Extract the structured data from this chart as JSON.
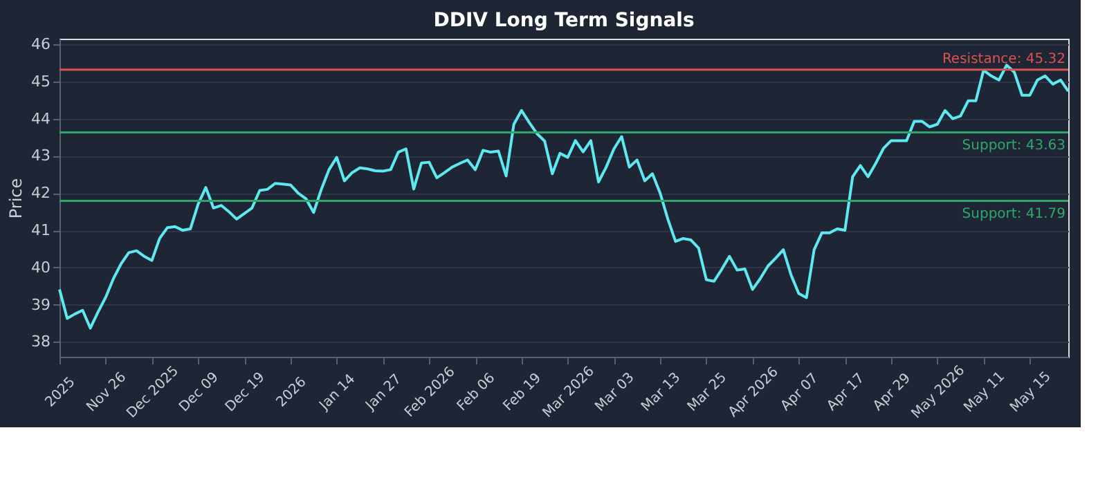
{
  "chart_data": {
    "type": "line",
    "title": "DDIV Long Term Signals",
    "ylabel": "Price",
    "categories": [
      "2025",
      null,
      null,
      null,
      null,
      null,
      "Nov 26",
      null,
      null,
      null,
      null,
      null,
      "Dec 2025",
      null,
      null,
      null,
      null,
      null,
      "Dec 09",
      null,
      null,
      null,
      null,
      null,
      "Dec 19",
      null,
      null,
      null,
      null,
      null,
      "2026",
      null,
      null,
      null,
      null,
      null,
      "Jan 14",
      null,
      null,
      null,
      null,
      null,
      "Jan 27",
      null,
      null,
      null,
      null,
      null,
      "Feb 2026",
      null,
      null,
      null,
      null,
      null,
      "Feb 06",
      null,
      null,
      null,
      null,
      null,
      "Feb 19",
      null,
      null,
      null,
      null,
      null,
      "Mar 2026",
      null,
      null,
      null,
      null,
      null,
      "Mar 03",
      null,
      null,
      null,
      null,
      null,
      "Mar 13",
      null,
      null,
      null,
      null,
      null,
      "Mar 25",
      null,
      null,
      null,
      null,
      null,
      "Apr 2026",
      null,
      null,
      null,
      null,
      null,
      "Apr 07",
      null,
      null,
      null,
      null,
      null,
      "Apr 17",
      null,
      null,
      null,
      null,
      null,
      "Apr 29",
      null,
      null,
      null,
      null,
      null,
      "May 2026",
      null,
      null,
      null,
      null,
      null,
      "May 11",
      null,
      null,
      null,
      null,
      null,
      "May 15",
      null,
      null,
      null,
      null,
      null
    ],
    "series": [
      {
        "color": "#5ee8f0",
        "values": [
          39.41,
          38.63,
          38.75,
          38.85,
          38.37,
          38.8,
          39.2,
          39.7,
          40.1,
          40.4,
          40.45,
          40.3,
          40.19,
          40.78,
          41.07,
          41.1,
          41.0,
          41.04,
          41.7,
          42.15,
          41.6,
          41.67,
          41.5,
          41.3,
          41.45,
          41.6,
          42.07,
          42.1,
          42.26,
          42.24,
          42.22,
          42.0,
          41.85,
          41.48,
          42.1,
          42.63,
          42.96,
          42.33,
          42.55,
          42.68,
          42.65,
          42.6,
          42.59,
          42.63,
          43.1,
          43.19,
          42.11,
          42.81,
          42.83,
          42.41,
          42.55,
          42.7,
          42.8,
          42.89,
          42.63,
          43.15,
          43.1,
          43.13,
          42.46,
          43.85,
          44.22,
          43.9,
          43.6,
          43.4,
          42.52,
          43.07,
          42.96,
          43.41,
          43.11,
          43.41,
          42.3,
          42.7,
          43.19,
          43.52,
          42.7,
          42.89,
          42.33,
          42.52,
          42.0,
          41.3,
          40.7,
          40.78,
          40.74,
          40.52,
          39.67,
          39.63,
          39.95,
          40.3,
          39.93,
          39.96,
          39.41,
          39.7,
          40.04,
          40.25,
          40.48,
          39.8,
          39.3,
          39.19,
          40.48,
          40.93,
          40.93,
          41.04,
          41.0,
          42.44,
          42.74,
          42.44,
          42.8,
          43.2,
          43.41,
          43.41,
          43.41,
          43.93,
          43.93,
          43.78,
          43.85,
          44.22,
          44.0,
          44.07,
          44.48,
          44.48,
          45.3,
          45.15,
          45.04,
          45.44,
          45.25,
          44.63,
          44.63,
          45.04,
          45.15,
          44.93,
          45.04,
          44.74
        ]
      }
    ],
    "ylim": [
      37.6,
      46.15
    ],
    "yticks": [
      38,
      39,
      40,
      41,
      42,
      43,
      44,
      45,
      46
    ],
    "grid": "y",
    "legend": false,
    "marker": "none",
    "line_style": "solid",
    "ref_lines": [
      {
        "axis": "y",
        "value": 45.32,
        "label": "Resistance: 45.32",
        "color": "#d9534f"
      },
      {
        "axis": "y",
        "value": 43.63,
        "label": "Support: 43.63",
        "color": "#2ea86a"
      },
      {
        "axis": "y",
        "value": 41.79,
        "label": "Support: 41.79",
        "color": "#2ea86a"
      }
    ]
  }
}
